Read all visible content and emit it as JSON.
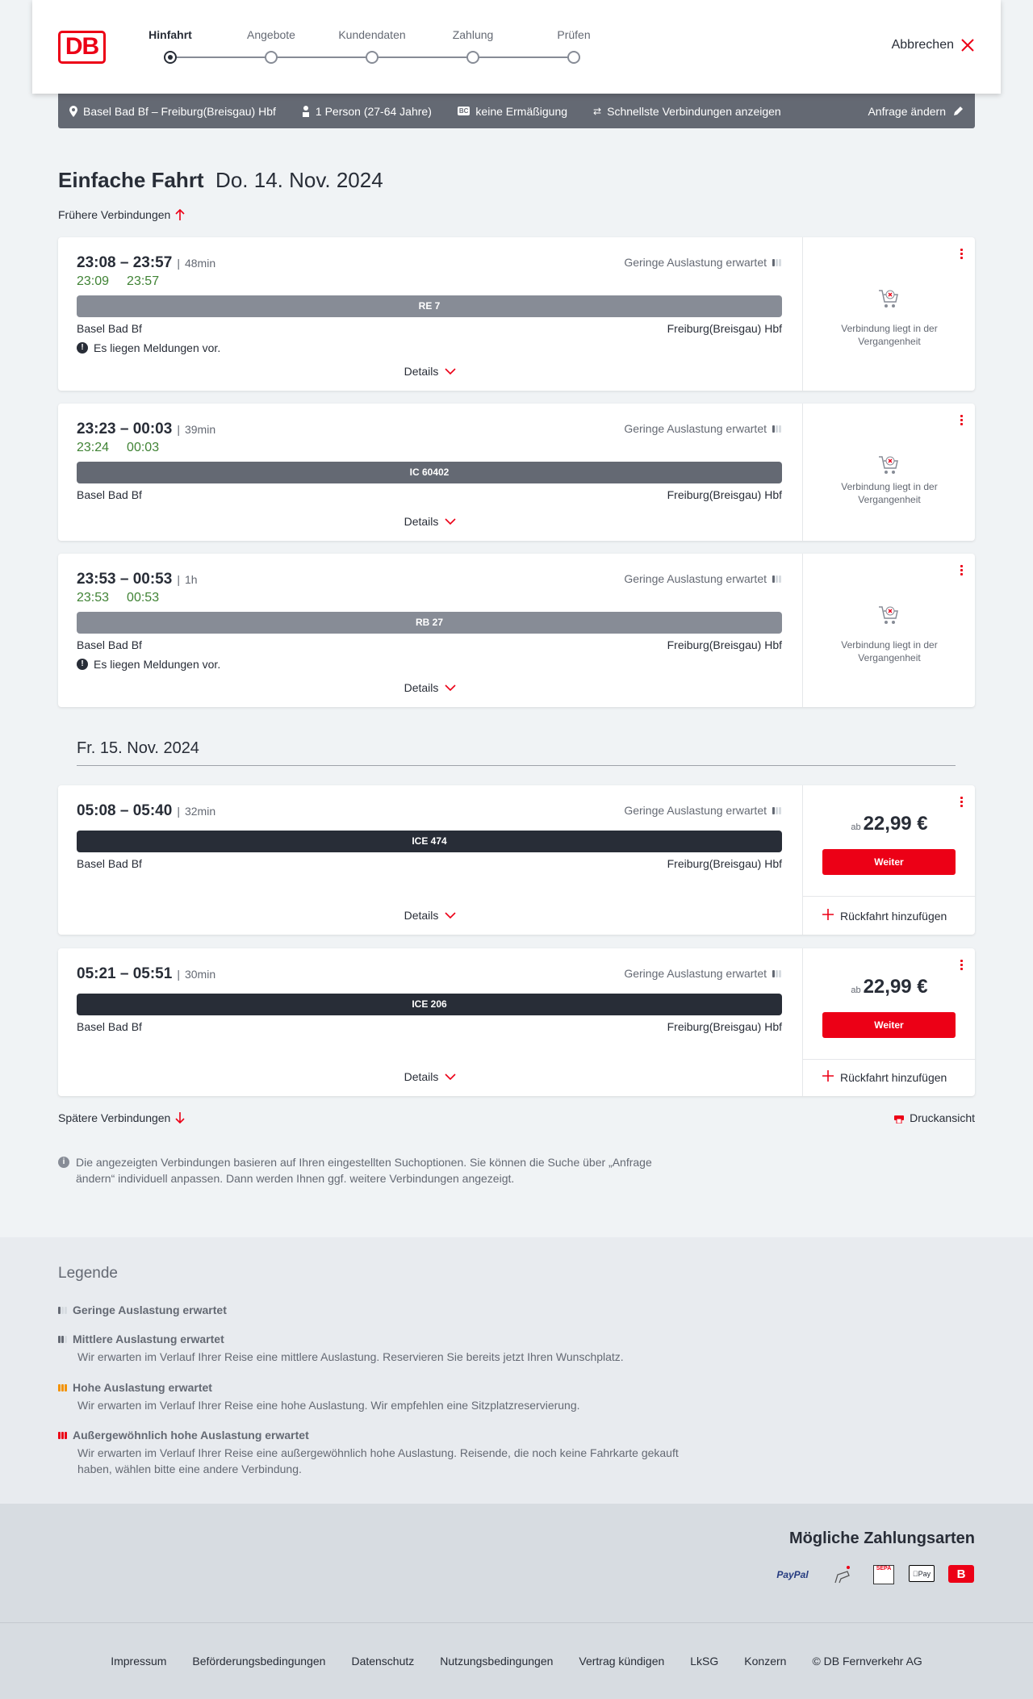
{
  "header": {
    "logo": "DB",
    "steps": [
      "Hinfahrt",
      "Angebote",
      "Kundendaten",
      "Zahlung",
      "Prüfen"
    ],
    "active_step": 0,
    "cancel": "Abbrechen"
  },
  "search": {
    "route": "Basel Bad Bf – Freiburg(Breisgau) Hbf",
    "travellers": "1 Person (27-64 Jahre)",
    "discount": "keine Ermäßigung",
    "fastest": "Schnellste Verbindungen anzeigen",
    "edit": "Anfrage ändern"
  },
  "title": {
    "main": "Einfache Fahrt",
    "date": "Do. 14. Nov. 2024"
  },
  "earlier": "Frühere Verbindungen",
  "later": "Spätere Verbindungen",
  "print": "Druckansicht",
  "date2": "Fr. 15. Nov. 2024",
  "colors": {
    "accent": "#ec0016",
    "realtime": "#408335",
    "regional_bar": "#878c96",
    "ic_bar": "#646973",
    "ice_bar": "#282d37"
  },
  "connections": [
    {
      "time": "23:08 – 23:57",
      "duration": "48min",
      "rt_dep": "23:09",
      "rt_arr": "23:57",
      "load": "Geringe Auslastung erwartet",
      "train": "RE 7",
      "bar_color": "#878c96",
      "from": "Basel Bad Bf",
      "to": "Freiburg(Breisgau) Hbf",
      "message": "Es liegen Meldungen vor.",
      "details": "Details",
      "past": "Verbindung liegt in der Vergangenheit"
    },
    {
      "time": "23:23 – 00:03",
      "duration": "39min",
      "rt_dep": "23:24",
      "rt_arr": "00:03",
      "load": "Geringe Auslastung erwartet",
      "train": "IC 60402",
      "bar_color": "#646973",
      "from": "Basel Bad Bf",
      "to": "Freiburg(Breisgau) Hbf",
      "details": "Details",
      "past": "Verbindung liegt in der Vergangenheit"
    },
    {
      "time": "23:53 – 00:53",
      "duration": "1h",
      "rt_dep": "23:53",
      "rt_arr": "00:53",
      "load": "Geringe Auslastung erwartet",
      "train": "RB 27",
      "bar_color": "#878c96",
      "from": "Basel Bad Bf",
      "to": "Freiburg(Breisgau) Hbf",
      "message": "Es liegen Meldungen vor.",
      "details": "Details",
      "past": "Verbindung liegt in der Vergangenheit"
    },
    {
      "time": "05:08 – 05:40",
      "duration": "32min",
      "load": "Geringe Auslastung erwartet",
      "train": "ICE 474",
      "bar_color": "#282d37",
      "from": "Basel Bad Bf",
      "to": "Freiburg(Breisgau) Hbf",
      "details": "Details",
      "price_prefix": "ab",
      "price": "22,99 €",
      "button": "Weiter",
      "return": "Rückfahrt hinzufügen"
    },
    {
      "time": "05:21 – 05:51",
      "duration": "30min",
      "load": "Geringe Auslastung erwartet",
      "train": "ICE 206",
      "bar_color": "#282d37",
      "from": "Basel Bad Bf",
      "to": "Freiburg(Breisgau) Hbf",
      "details": "Details",
      "price_prefix": "ab",
      "price": "22,99 €",
      "button": "Weiter",
      "return": "Rückfahrt hinzufügen"
    }
  ],
  "note": "Die angezeigten Verbindungen basieren auf Ihren eingestellten Suchoptionen. Sie können die Suche über „Anfrage ändern“ individuell anpassen. Dann werden Ihnen ggf. weitere Verbindungen angezeigt.",
  "legend": {
    "title": "Legende",
    "items": [
      {
        "title": "Geringe Auslastung erwartet",
        "level": 1
      },
      {
        "title": "Mittlere Auslastung erwartet",
        "text": "Wir erwarten im Verlauf Ihrer Reise eine mittlere Auslastung. Reservieren Sie bereits jetzt Ihren Wunschplatz.",
        "level": 2
      },
      {
        "title": "Hohe Auslastung erwartet",
        "text": "Wir erwarten im Verlauf Ihrer Reise eine hohe Auslastung. Wir empfehlen eine Sitzplatzreservierung.",
        "level": 3
      },
      {
        "title": "Außergewöhnlich hohe Auslastung erwartet",
        "text": "Wir erwarten im Verlauf Ihrer Reise eine außergewöhnlich hohe Auslastung. Reisende, die noch keine Fahrkarte gekauft haben, wählen bitte eine andere Verbindung.",
        "level": 4
      }
    ]
  },
  "payment": {
    "title": "Mögliche Zahlungsarten",
    "methods": [
      "PayPal",
      "Kreditkarte",
      "SEPA",
      "Apple Pay",
      "DB Bonus"
    ]
  },
  "footer": [
    "Impressum",
    "Beförderungsbedingungen",
    "Datenschutz",
    "Nutzungsbedingungen",
    "Vertrag kündigen",
    "LkSG",
    "Konzern",
    "© DB Fernverkehr AG"
  ]
}
